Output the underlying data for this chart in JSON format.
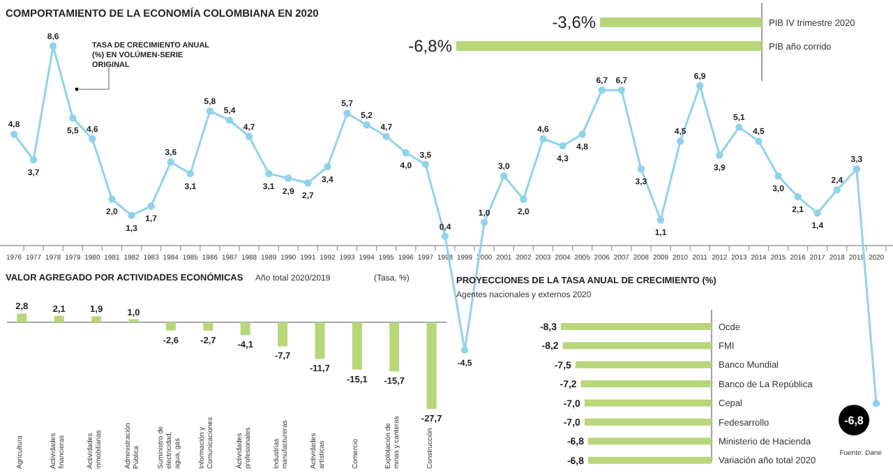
{
  "chart_data": [
    {
      "type": "line",
      "title": "COMPORTAMIENTO DE LA ECONOMÍA COLOMBIANA EN 2020",
      "categories": [
        "1976",
        "1977",
        "1978",
        "1979",
        "1980",
        "1981",
        "1982",
        "1983",
        "1984",
        "1985",
        "1986",
        "1987",
        "1988",
        "1989",
        "1990",
        "1991",
        "1992",
        "1993",
        "1994",
        "1995",
        "1996",
        "1997",
        "1998",
        "1999",
        "2000",
        "2001",
        "2002",
        "2003",
        "2004",
        "2005",
        "2006",
        "2007",
        "2008",
        "2009",
        "2010",
        "2011",
        "2012",
        "2013",
        "2014",
        "2015",
        "2016",
        "2017",
        "2018",
        "2019",
        "2020"
      ],
      "values": [
        4.8,
        3.7,
        8.6,
        5.5,
        4.6,
        2.0,
        1.3,
        1.7,
        3.6,
        3.1,
        5.8,
        5.4,
        4.7,
        3.1,
        2.9,
        2.7,
        3.4,
        5.7,
        5.2,
        4.7,
        4.0,
        3.5,
        0.4,
        -4.5,
        1.0,
        3.0,
        2.0,
        4.6,
        4.3,
        4.8,
        6.7,
        6.7,
        3.3,
        1.1,
        4.5,
        6.9,
        3.9,
        5.1,
        4.5,
        3.0,
        2.1,
        1.4,
        2.4,
        3.3,
        -6.8
      ],
      "value_labels": [
        "4,8",
        "3,7",
        "8,6",
        "5,5",
        "4,6",
        "2,0",
        "1,3",
        "1,7",
        "3,6",
        "3,1",
        "5,8",
        "5,4",
        "4,7",
        "3,1",
        "2,9",
        "2,7",
        "3,4",
        "5,7",
        "5,2",
        "4,7",
        "4,0",
        "3,5",
        "0,4",
        "-4,5",
        "1,0",
        "3,0",
        "2,0",
        "4,6",
        "4,3",
        "4,8",
        "6,7",
        "6,7",
        "3,3",
        "1,1",
        "4,5",
        "6,9",
        "3,9",
        "5,1",
        "4,5",
        "3,0",
        "2,1",
        "1,4",
        "2,4",
        "3,3",
        "-6,8"
      ],
      "color": "#8fd3ea",
      "marker": "circle",
      "annotations": [
        "TASA DE CRECIMIENTO ANUAL (%) EN VOLÚMEN-SERIE ORIGINAL"
      ]
    },
    {
      "type": "bar",
      "orientation": "horizontal",
      "categories": [
        "PIB IV trimestre 2020",
        "PIB año corrido"
      ],
      "values": [
        -3.6,
        -6.8
      ],
      "value_labels": [
        "-3,6%",
        "-6,8%"
      ],
      "color": "#b8d67a"
    },
    {
      "type": "bar",
      "title": "VALOR AGREGADO POR ACTIVIDADES ECONÓMICAS",
      "subtitle": "Año total 2020/2019",
      "ylabel": "(Tasa, %)",
      "categories": [
        "Agricultura",
        "Actividades financieras",
        "Actividades inmobiliarias",
        "Administración Pública",
        "Suministro de electricidad, agua, gas",
        "Información y Comunicaciones",
        "Actividades profesionales",
        "Industrias manufactureras",
        "Actividades artísticas",
        "Comercio",
        "Explotación de minas y canteras",
        "Construcción"
      ],
      "values": [
        2.8,
        2.1,
        1.9,
        1.0,
        -2.6,
        -2.7,
        -4.1,
        -7.7,
        -11.7,
        -15.1,
        -15.7,
        -27.7
      ],
      "value_labels": [
        "2,8",
        "2,1",
        "1,9",
        "1,0",
        "-2,6",
        "-2,7",
        "-4,1",
        "-7,7",
        "-11,7",
        "-15,1",
        "-15,7",
        "-27,7"
      ],
      "color": "#b8d67a"
    },
    {
      "type": "bar",
      "orientation": "horizontal",
      "title": "PROYECCIONES DE LA TASA ANUAL DE CRECIMIENTO (%)",
      "subtitle": "Agentes nacionales y externos 2020",
      "categories": [
        "Ocde",
        "FMI",
        "Banco Mundial",
        "Banco de La República",
        "Cepal",
        "Fedesarrollo",
        "Ministerio de Hacienda",
        "Variación año total 2020"
      ],
      "values": [
        -8.3,
        -8.2,
        -7.5,
        -7.2,
        -7.0,
        -7.0,
        -6.8,
        -6.8
      ],
      "value_labels": [
        "-8,3",
        "-8,2",
        "-7,5",
        "-7,2",
        "-7,0",
        "-7,0",
        "-6,8",
        "-6,8"
      ],
      "color": "#b8d67a",
      "annotations": [
        "Fuente: Dane"
      ]
    }
  ]
}
